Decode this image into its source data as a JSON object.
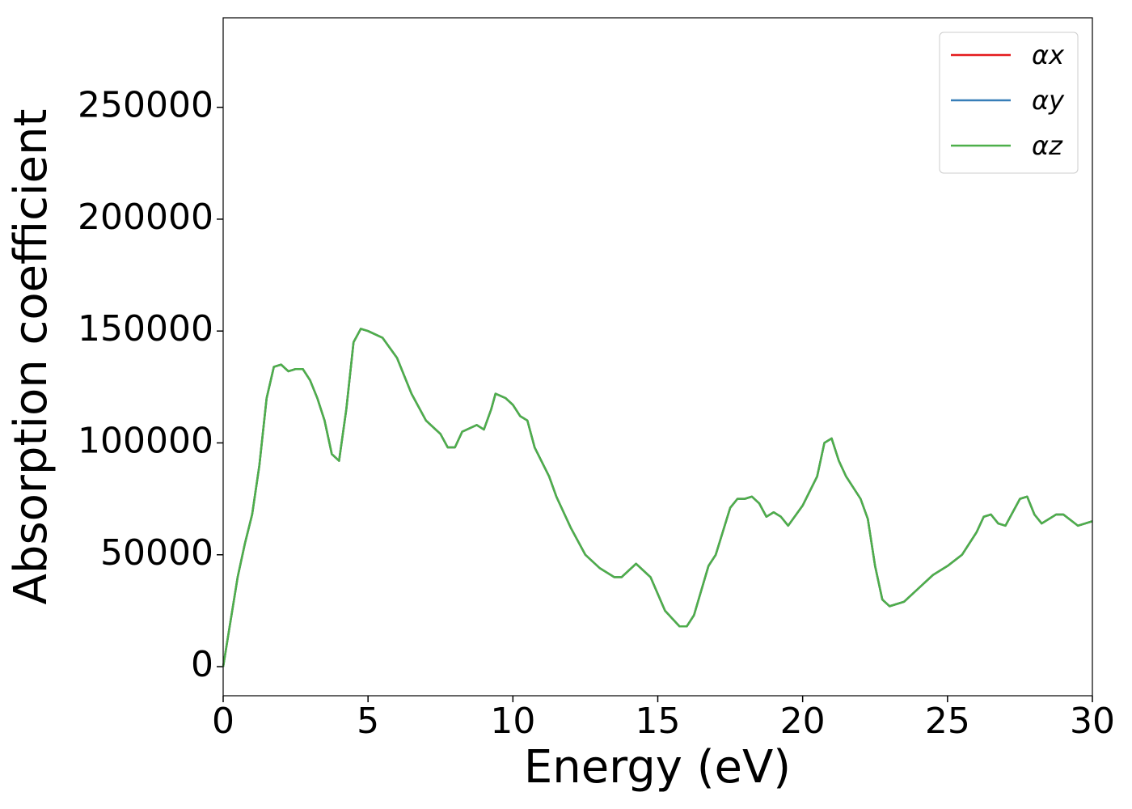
{
  "chart_data": {
    "type": "line",
    "xlabel": "Energy (eV)",
    "ylabel": "Absorption coefficient",
    "x": [
      0,
      0.25,
      0.5,
      0.75,
      1.0,
      1.25,
      1.5,
      1.75,
      2.0,
      2.25,
      2.5,
      2.75,
      3.0,
      3.25,
      3.5,
      3.75,
      4.0,
      4.25,
      4.5,
      4.75,
      5.0,
      5.5,
      6.0,
      6.5,
      7.0,
      7.5,
      7.75,
      8.0,
      8.25,
      8.75,
      9.0,
      9.25,
      9.4,
      9.75,
      10.0,
      10.25,
      10.5,
      10.75,
      11.25,
      11.5,
      12.0,
      12.5,
      13.0,
      13.5,
      13.75,
      14.25,
      14.75,
      15.25,
      15.75,
      16.0,
      16.25,
      16.75,
      17.0,
      17.5,
      17.75,
      18.0,
      18.25,
      18.5,
      18.75,
      19.0,
      19.25,
      19.5,
      20.0,
      20.5,
      20.75,
      21.0,
      21.25,
      21.5,
      22.0,
      22.25,
      22.5,
      22.75,
      23.0,
      23.5,
      24.0,
      24.5,
      25.0,
      25.5,
      26.0,
      26.25,
      26.5,
      26.75,
      27.0,
      27.5,
      27.75,
      28.0,
      28.25,
      28.75,
      29.0,
      29.5,
      29.75,
      30.0
    ],
    "series": [
      {
        "name": "αx",
        "color": "#e41a1c",
        "values": [
          0,
          20000,
          40000,
          55000,
          68000,
          90000,
          120000,
          134000,
          135000,
          132000,
          133000,
          133000,
          128000,
          120000,
          110000,
          95000,
          92000,
          115000,
          145000,
          151000,
          150000,
          147000,
          138000,
          122000,
          110000,
          104000,
          98000,
          98000,
          105000,
          108000,
          106000,
          115000,
          122000,
          120000,
          117000,
          112000,
          110000,
          98000,
          85000,
          76000,
          62000,
          50000,
          44000,
          40000,
          40000,
          46000,
          40000,
          25000,
          18000,
          18000,
          23000,
          45000,
          50000,
          71000,
          75000,
          75000,
          76000,
          73000,
          67000,
          69000,
          67000,
          63000,
          72000,
          85000,
          100000,
          102000,
          92000,
          85000,
          75000,
          66000,
          45000,
          30000,
          27000,
          29000,
          35000,
          41000,
          45000,
          50000,
          60000,
          67000,
          68000,
          64000,
          63000,
          75000,
          76000,
          68000,
          64000,
          68000,
          68000,
          63000,
          64000,
          65000
        ]
      },
      {
        "name": "αy",
        "color": "#377eb8",
        "values": [
          0,
          20000,
          40000,
          55000,
          68000,
          90000,
          120000,
          134000,
          135000,
          132000,
          133000,
          133000,
          128000,
          120000,
          110000,
          95000,
          92000,
          115000,
          145000,
          151000,
          150000,
          147000,
          138000,
          122000,
          110000,
          104000,
          98000,
          98000,
          105000,
          108000,
          106000,
          115000,
          122000,
          120000,
          117000,
          112000,
          110000,
          98000,
          85000,
          76000,
          62000,
          50000,
          44000,
          40000,
          40000,
          46000,
          40000,
          25000,
          18000,
          18000,
          23000,
          45000,
          50000,
          71000,
          75000,
          75000,
          76000,
          73000,
          67000,
          69000,
          67000,
          63000,
          72000,
          85000,
          100000,
          102000,
          92000,
          85000,
          75000,
          66000,
          45000,
          30000,
          27000,
          29000,
          35000,
          41000,
          45000,
          50000,
          60000,
          67000,
          68000,
          64000,
          63000,
          75000,
          76000,
          68000,
          64000,
          68000,
          68000,
          63000,
          64000,
          65000
        ]
      },
      {
        "name": "αz",
        "color": "#4daf4a",
        "values": [
          0,
          20000,
          40000,
          55000,
          68000,
          90000,
          120000,
          134000,
          135000,
          132000,
          133000,
          133000,
          128000,
          120000,
          110000,
          95000,
          92000,
          115000,
          145000,
          151000,
          150000,
          147000,
          138000,
          122000,
          110000,
          104000,
          98000,
          98000,
          105000,
          108000,
          106000,
          115000,
          122000,
          120000,
          117000,
          112000,
          110000,
          98000,
          85000,
          76000,
          62000,
          50000,
          44000,
          40000,
          40000,
          46000,
          40000,
          25000,
          18000,
          18000,
          23000,
          45000,
          50000,
          71000,
          75000,
          75000,
          76000,
          73000,
          67000,
          69000,
          67000,
          63000,
          72000,
          85000,
          100000,
          102000,
          92000,
          85000,
          75000,
          66000,
          45000,
          30000,
          27000,
          29000,
          35000,
          41000,
          45000,
          50000,
          60000,
          67000,
          68000,
          64000,
          63000,
          75000,
          76000,
          68000,
          64000,
          68000,
          68000,
          63000,
          64000,
          65000
        ]
      }
    ],
    "xlim": [
      0,
      30
    ],
    "xticks": [
      0,
      5,
      10,
      15,
      20,
      25,
      30
    ],
    "ylim": [
      -13000,
      290000
    ],
    "yticks": [
      0,
      50000,
      100000,
      150000,
      200000,
      250000
    ],
    "grid": false,
    "legend": "upper right"
  }
}
